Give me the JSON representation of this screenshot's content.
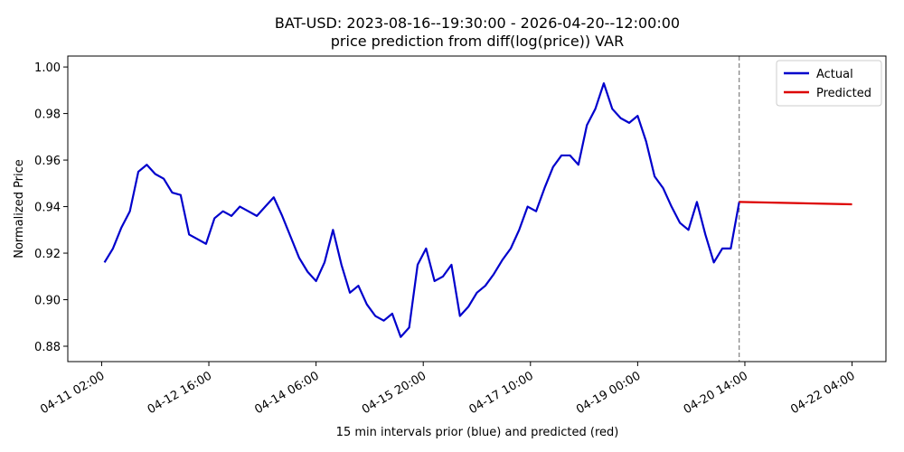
{
  "chart_data": {
    "type": "line",
    "title": "BAT-USD: 2023-08-16--19:30:00 - 2026-04-20--12:00:00",
    "subtitle": "price prediction from diff(log(price)) VAR",
    "xlabel": "15 min intervals prior (blue) and predicted (red)",
    "ylabel": "Normalized Price",
    "xlim": [
      "04-10 14:00",
      "04-22 16:00"
    ],
    "xticks": [
      "04-11 02:00",
      "04-12 16:00",
      "04-14 06:00",
      "04-15 20:00",
      "04-17 10:00",
      "04-19 00:00",
      "04-20 14:00",
      "04-22 04:00"
    ],
    "ylim": [
      0.8734,
      1.0047
    ],
    "yticks": [
      {
        "value": 0.88,
        "label": "0.88"
      },
      {
        "value": 0.9,
        "label": "0.90"
      },
      {
        "value": 0.92,
        "label": "0.92"
      },
      {
        "value": 0.94,
        "label": "0.94"
      },
      {
        "value": 0.96,
        "label": "0.96"
      },
      {
        "value": 0.98,
        "label": "0.98"
      },
      {
        "value": 1,
        "label": "1.00"
      }
    ],
    "vline": "04-20 12:00",
    "legend": "upper right",
    "series": [
      {
        "name": "Actual",
        "color": "#0000cc",
        "x": [
          "04-11 03:00",
          "04-11 06:00",
          "04-11 09:00",
          "04-11 12:00",
          "04-11 15:00",
          "04-11 18:00",
          "04-11 21:00",
          "04-12 00:00",
          "04-12 03:00",
          "04-12 06:00",
          "04-12 09:00",
          "04-12 12:00",
          "04-12 15:00",
          "04-12 18:00",
          "04-12 21:00",
          "04-13 00:00",
          "04-13 03:00",
          "04-13 06:00",
          "04-13 09:00",
          "04-13 12:00",
          "04-13 15:00",
          "04-13 18:00",
          "04-13 21:00",
          "04-14 00:00",
          "04-14 03:00",
          "04-14 06:00",
          "04-14 09:00",
          "04-14 12:00",
          "04-14 15:00",
          "04-14 18:00",
          "04-14 21:00",
          "04-15 00:00",
          "04-15 03:00",
          "04-15 06:00",
          "04-15 09:00",
          "04-15 12:00",
          "04-15 15:00",
          "04-15 18:00",
          "04-15 21:00",
          "04-16 00:00",
          "04-16 03:00",
          "04-16 06:00",
          "04-16 09:00",
          "04-16 12:00",
          "04-16 15:00",
          "04-16 18:00",
          "04-16 21:00",
          "04-17 00:00",
          "04-17 03:00",
          "04-17 06:00",
          "04-17 09:00",
          "04-17 12:00",
          "04-17 15:00",
          "04-17 18:00",
          "04-17 21:00",
          "04-18 00:00",
          "04-18 03:00",
          "04-18 06:00",
          "04-18 09:00",
          "04-18 12:00",
          "04-18 15:00",
          "04-18 18:00",
          "04-18 21:00",
          "04-19 00:00",
          "04-19 03:00",
          "04-19 06:00",
          "04-19 09:00",
          "04-19 12:00",
          "04-19 15:00",
          "04-19 18:00",
          "04-19 21:00",
          "04-20 00:00",
          "04-20 03:00",
          "04-20 06:00",
          "04-20 09:00",
          "04-20 12:00"
        ],
        "values": [
          0.916,
          0.922,
          0.931,
          0.938,
          0.955,
          0.958,
          0.954,
          0.952,
          0.946,
          0.945,
          0.928,
          0.926,
          0.924,
          0.935,
          0.938,
          0.936,
          0.94,
          0.938,
          0.936,
          0.94,
          0.944,
          0.936,
          0.927,
          0.918,
          0.912,
          0.908,
          0.916,
          0.93,
          0.915,
          0.903,
          0.906,
          0.898,
          0.893,
          0.891,
          0.894,
          0.884,
          0.888,
          0.915,
          0.922,
          0.908,
          0.91,
          0.915,
          0.893,
          0.897,
          0.903,
          0.906,
          0.911,
          0.917,
          0.922,
          0.93,
          0.94,
          0.938,
          0.948,
          0.957,
          0.962,
          0.962,
          0.958,
          0.975,
          0.982,
          0.993,
          0.982,
          0.978,
          0.976,
          0.979,
          0.968,
          0.953,
          0.948,
          0.94,
          0.933,
          0.93,
          0.942,
          0.928,
          0.916,
          0.922,
          0.922,
          0.942
        ]
      },
      {
        "name": "Predicted",
        "color": "#dd0000",
        "x": [
          "04-20 12:00",
          "04-22 04:00"
        ],
        "values": [
          0.942,
          0.941
        ]
      }
    ]
  }
}
